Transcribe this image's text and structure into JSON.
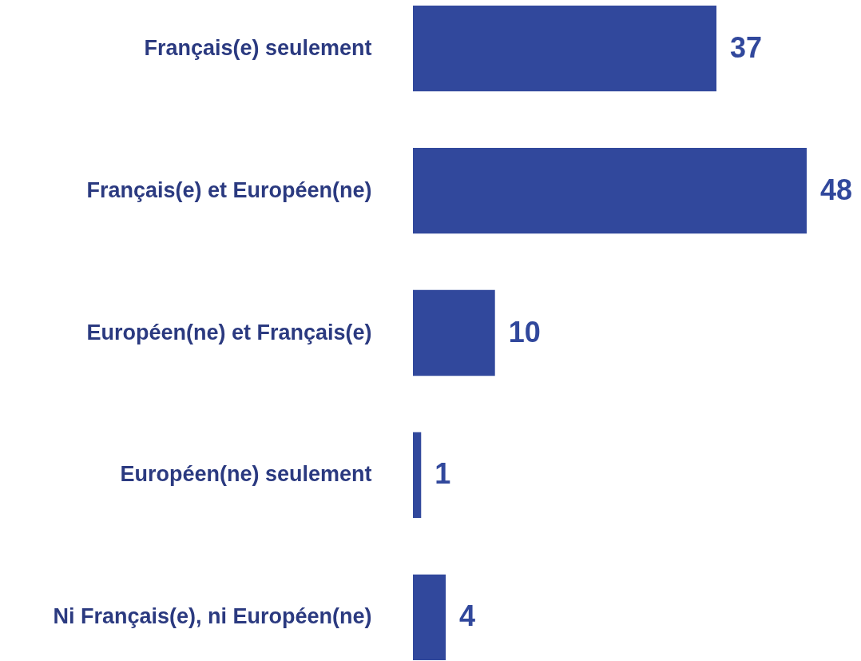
{
  "chart_data": {
    "type": "bar",
    "orientation": "horizontal",
    "categories": [
      "Français(e) seulement",
      "Français(e) et Européen(ne)",
      "Européen(ne) et Français(e)",
      "Européen(ne) seulement",
      "Ni Français(e), ni Européen(ne)"
    ],
    "values": [
      37,
      48,
      10,
      1,
      4
    ],
    "color": "#31489c",
    "data_labels": true,
    "tick_labels": "y"
  }
}
